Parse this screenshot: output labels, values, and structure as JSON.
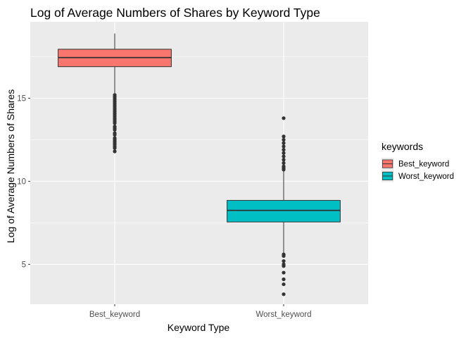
{
  "chart_data": {
    "type": "boxplot",
    "title": "Log of Average Numbers of Shares by Keyword Type",
    "xlabel": "Keyword Type",
    "ylabel": "Log of Average Numbers of Shares",
    "categories": [
      "Best_keyword",
      "Worst_keyword"
    ],
    "yticks": [
      5,
      10,
      15
    ],
    "ylim": [
      2.6,
      19.6
    ],
    "grid": true,
    "legend": {
      "title": "keywords",
      "position": "right",
      "entries": [
        {
          "label": "Best_keyword",
          "color": "#F8766D"
        },
        {
          "label": "Worst_keyword",
          "color": "#00BFC4"
        }
      ]
    },
    "series": [
      {
        "category": "Best_keyword",
        "color": "#F8766D",
        "whisker_low": 15.3,
        "q1": 16.9,
        "median": 17.45,
        "q3": 17.95,
        "whisker_high": 18.9,
        "outliers": [
          15.2,
          15.1,
          15.0,
          14.9,
          14.8,
          14.7,
          14.6,
          14.5,
          14.4,
          14.3,
          14.2,
          14.1,
          14.0,
          13.9,
          13.8,
          13.7,
          13.6,
          13.5,
          13.3,
          13.2,
          13.1,
          12.9,
          12.8,
          12.6,
          12.5,
          12.4,
          12.3,
          12.2,
          12.1,
          12.0,
          11.8
        ]
      },
      {
        "category": "Worst_keyword",
        "color": "#00BFC4",
        "whisker_low": 5.7,
        "q1": 7.55,
        "median": 8.25,
        "q3": 8.85,
        "whisker_high": 10.6,
        "outliers": [
          13.8,
          12.7,
          12.5,
          12.3,
          12.1,
          11.9,
          11.7,
          11.5,
          11.3,
          11.1,
          10.9,
          10.8,
          10.7,
          5.6,
          5.5,
          5.2,
          5.0,
          4.9,
          4.5,
          4.1,
          3.8,
          3.2
        ]
      }
    ]
  }
}
